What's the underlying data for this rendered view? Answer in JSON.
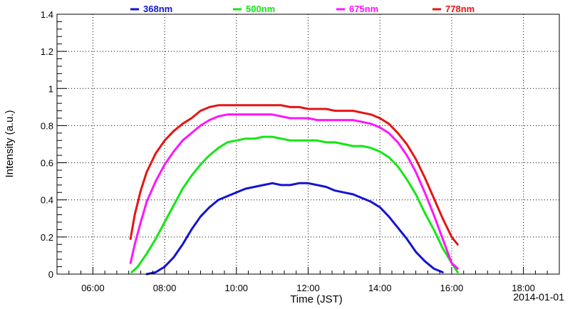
{
  "chart_data": {
    "type": "line",
    "xlabel": "Time (JST)",
    "ylabel": "Intensity (a.u.)",
    "date_label": "2014-01-01",
    "xlim": [
      "05:00",
      "19:00"
    ],
    "ylim": [
      0,
      1.4
    ],
    "x_ticks": [
      "06:00",
      "08:00",
      "10:00",
      "12:00",
      "14:00",
      "16:00",
      "18:00"
    ],
    "y_ticks": [
      "0",
      "0.2",
      "0.4",
      "0.6",
      "0.8",
      "1",
      "1.2",
      "1.4"
    ],
    "grid": true,
    "legend_position": "top",
    "series": [
      {
        "name": "368nm",
        "color": "#1414d2",
        "x": [
          "07:30",
          "07:45",
          "08:00",
          "08:15",
          "08:30",
          "08:45",
          "09:00",
          "09:15",
          "09:30",
          "09:45",
          "10:00",
          "10:15",
          "10:30",
          "10:45",
          "11:00",
          "11:15",
          "11:30",
          "11:45",
          "12:00",
          "12:15",
          "12:30",
          "12:45",
          "13:00",
          "13:15",
          "13:30",
          "13:45",
          "14:00",
          "14:15",
          "14:30",
          "14:45",
          "15:00",
          "15:15",
          "15:30",
          "15:45"
        ],
        "values": [
          0.0,
          0.01,
          0.04,
          0.09,
          0.16,
          0.24,
          0.31,
          0.36,
          0.4,
          0.42,
          0.44,
          0.46,
          0.47,
          0.48,
          0.49,
          0.48,
          0.48,
          0.49,
          0.49,
          0.48,
          0.47,
          0.45,
          0.44,
          0.43,
          0.41,
          0.39,
          0.36,
          0.31,
          0.25,
          0.19,
          0.12,
          0.07,
          0.03,
          0.01
        ]
      },
      {
        "name": "500nm",
        "color": "#14e614",
        "x": [
          "07:05",
          "07:15",
          "07:30",
          "07:45",
          "08:00",
          "08:15",
          "08:30",
          "08:45",
          "09:00",
          "09:15",
          "09:30",
          "09:45",
          "10:00",
          "10:15",
          "10:30",
          "10:45",
          "11:00",
          "11:15",
          "11:30",
          "11:45",
          "12:00",
          "12:15",
          "12:30",
          "12:45",
          "13:00",
          "13:15",
          "13:30",
          "13:45",
          "14:00",
          "14:15",
          "14:30",
          "14:45",
          "15:00",
          "15:15",
          "15:30",
          "15:45",
          "16:00",
          "16:10"
        ],
        "values": [
          0.01,
          0.04,
          0.11,
          0.19,
          0.28,
          0.37,
          0.46,
          0.53,
          0.59,
          0.64,
          0.68,
          0.71,
          0.72,
          0.73,
          0.73,
          0.74,
          0.74,
          0.73,
          0.72,
          0.72,
          0.72,
          0.72,
          0.71,
          0.71,
          0.7,
          0.69,
          0.69,
          0.68,
          0.66,
          0.63,
          0.58,
          0.51,
          0.43,
          0.33,
          0.24,
          0.14,
          0.06,
          0.01
        ]
      },
      {
        "name": "675nm",
        "color": "#ff14ff",
        "x": [
          "07:03",
          "07:10",
          "07:20",
          "07:30",
          "07:45",
          "08:00",
          "08:15",
          "08:30",
          "08:45",
          "09:00",
          "09:15",
          "09:30",
          "09:45",
          "10:00",
          "10:15",
          "10:30",
          "10:45",
          "11:00",
          "11:15",
          "11:30",
          "11:45",
          "12:00",
          "12:15",
          "12:30",
          "12:45",
          "13:00",
          "13:15",
          "13:30",
          "13:45",
          "14:00",
          "14:15",
          "14:30",
          "14:45",
          "15:00",
          "15:15",
          "15:30",
          "15:45",
          "16:00",
          "16:10"
        ],
        "values": [
          0.06,
          0.16,
          0.28,
          0.39,
          0.5,
          0.59,
          0.66,
          0.72,
          0.76,
          0.8,
          0.83,
          0.85,
          0.86,
          0.86,
          0.86,
          0.86,
          0.86,
          0.86,
          0.85,
          0.84,
          0.84,
          0.84,
          0.83,
          0.83,
          0.83,
          0.83,
          0.83,
          0.82,
          0.81,
          0.79,
          0.76,
          0.71,
          0.64,
          0.55,
          0.44,
          0.32,
          0.19,
          0.06,
          0.03
        ]
      },
      {
        "name": "778nm",
        "color": "#e61414",
        "x": [
          "07:03",
          "07:10",
          "07:20",
          "07:30",
          "07:45",
          "08:00",
          "08:15",
          "08:30",
          "08:45",
          "09:00",
          "09:15",
          "09:30",
          "09:45",
          "10:00",
          "10:15",
          "10:30",
          "10:45",
          "11:00",
          "11:15",
          "11:30",
          "11:45",
          "12:00",
          "12:15",
          "12:30",
          "12:45",
          "13:00",
          "13:15",
          "13:30",
          "13:45",
          "14:00",
          "14:15",
          "14:30",
          "14:45",
          "15:00",
          "15:15",
          "15:30",
          "15:45",
          "16:00",
          "16:10"
        ],
        "values": [
          0.19,
          0.32,
          0.45,
          0.55,
          0.65,
          0.72,
          0.77,
          0.81,
          0.84,
          0.88,
          0.9,
          0.91,
          0.91,
          0.91,
          0.91,
          0.91,
          0.91,
          0.91,
          0.91,
          0.9,
          0.9,
          0.89,
          0.89,
          0.89,
          0.88,
          0.88,
          0.88,
          0.87,
          0.86,
          0.84,
          0.81,
          0.76,
          0.7,
          0.62,
          0.52,
          0.41,
          0.3,
          0.2,
          0.16
        ]
      }
    ]
  }
}
